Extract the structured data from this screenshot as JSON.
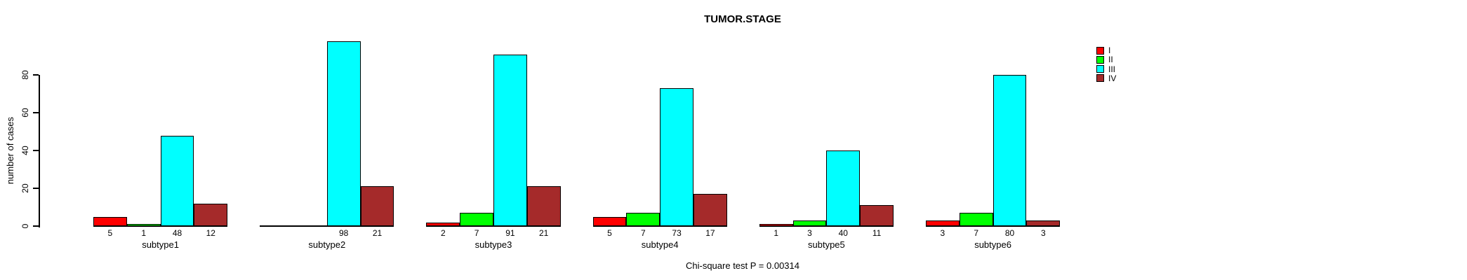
{
  "figure": {
    "background": "#FFFFFF"
  },
  "chart_data": {
    "type": "bar",
    "title": "TUMOR.STAGE",
    "ylabel": "number of cases",
    "xlabel": "",
    "caption": "Chi-square test P = 0.00314",
    "grid": false,
    "legend_position": "right-top",
    "categories": [
      "subtype1",
      "subtype2",
      "subtype3",
      "subtype4",
      "subtype5",
      "subtype6"
    ],
    "series": [
      {
        "name": "I",
        "color": "#FF0000",
        "values": [
          5,
          0,
          2,
          5,
          1,
          3
        ],
        "labels": [
          "5",
          "",
          "2",
          "5",
          "1",
          "3"
        ]
      },
      {
        "name": "II",
        "color": "#00FF00",
        "values": [
          1,
          0,
          7,
          7,
          3,
          7
        ],
        "labels": [
          "1",
          "",
          "7",
          "7",
          "3",
          "7"
        ]
      },
      {
        "name": "III",
        "color": "#00FFFF",
        "values": [
          48,
          98,
          91,
          73,
          40,
          80
        ],
        "labels": [
          "48",
          "98",
          "91",
          "73",
          "40",
          "80"
        ]
      },
      {
        "name": "IV",
        "color": "#A52A2A",
        "values": [
          12,
          21,
          21,
          17,
          11,
          3
        ],
        "labels": [
          "12",
          "21",
          "21",
          "17",
          "11",
          "3"
        ]
      }
    ],
    "y_axis": {
      "ticks": [
        0,
        20,
        40,
        60,
        80
      ],
      "tick_labels": [
        "0",
        "20",
        "40",
        "60",
        "80"
      ],
      "range": [
        0,
        98
      ]
    }
  }
}
